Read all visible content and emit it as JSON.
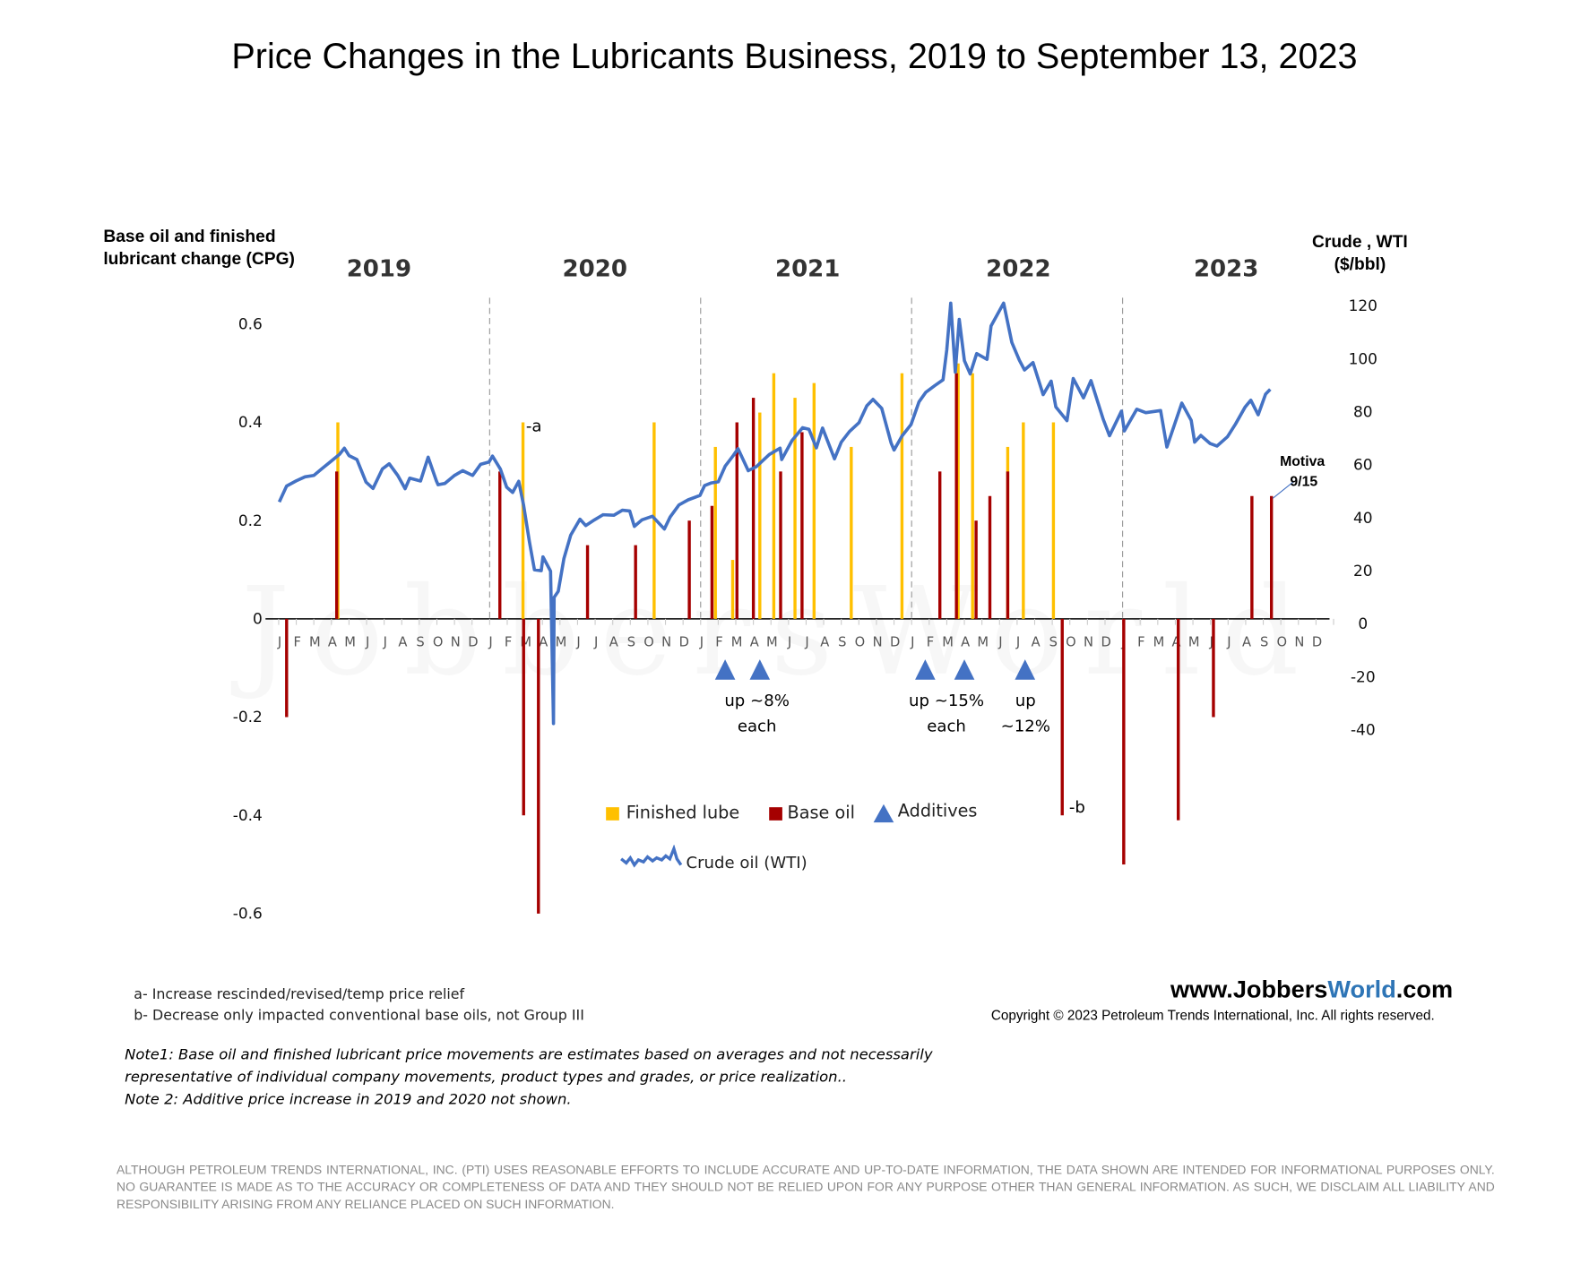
{
  "chart_data": {
    "type": "bar+line",
    "title": "Price Changes in the Lubricants Business, 2019 to September 13, 2023",
    "ylabel_left": [
      "Base oil and finished",
      "lubricant change (CPG)"
    ],
    "ylabel_right": [
      "Crude , WTI",
      "($/bbl)"
    ],
    "ylim_left": [
      -0.6,
      0.6
    ],
    "ylim_right": [
      -40,
      120
    ],
    "yticks_left": [
      "0.6",
      "0.4",
      "0.2",
      "0",
      "-0.2",
      "-0.4",
      "-0.6"
    ],
    "yticks_right": [
      "120",
      "100",
      "80",
      "60",
      "40",
      "20",
      "0",
      "-20",
      "-40"
    ],
    "xlim": [
      "2019-01-01",
      "2024-01-01"
    ],
    "years": [
      "2019",
      "2020",
      "2021",
      "2022",
      "2023"
    ],
    "months": [
      "J",
      "F",
      "M",
      "A",
      "M",
      "J",
      "J",
      "A",
      "S",
      "O",
      "N",
      "D"
    ],
    "grid": false,
    "legend_placement": "bottom-center",
    "colors": {
      "finished_lube": "#FFC000",
      "base_oil": "#A50000",
      "additives": "#4472C4",
      "crude": "#4472C4"
    },
    "series": [
      {
        "name": "Finished lube",
        "type": "bar",
        "axis": "left",
        "points": [
          [
            "2019-04-12",
            0.4
          ],
          [
            "2020-02-27",
            0.4
          ],
          [
            "2020-10-12",
            0.4
          ],
          [
            "2021-01-27",
            0.35
          ],
          [
            "2021-02-24",
            0.12
          ],
          [
            "2021-04-12",
            0.42
          ],
          [
            "2021-05-06",
            0.5
          ],
          [
            "2021-06-12",
            0.45
          ],
          [
            "2021-07-15",
            0.48
          ],
          [
            "2021-09-18",
            0.35
          ],
          [
            "2021-12-15",
            0.5
          ],
          [
            "2022-03-21",
            0.52
          ],
          [
            "2022-04-15",
            0.5
          ],
          [
            "2022-06-15",
            0.35
          ],
          [
            "2022-07-12",
            0.4
          ],
          [
            "2022-09-03",
            0.4
          ]
        ]
      },
      {
        "name": "Base oil",
        "type": "bar",
        "axis": "left",
        "points": [
          [
            "2019-01-15",
            -0.2
          ],
          [
            "2019-04-10",
            0.3
          ],
          [
            "2020-01-19",
            0.3
          ],
          [
            "2020-02-28",
            -0.4
          ],
          [
            "2020-03-25",
            -0.6
          ],
          [
            "2020-06-18",
            0.15
          ],
          [
            "2020-09-10",
            0.15
          ],
          [
            "2020-12-12",
            0.2
          ],
          [
            "2021-01-21",
            0.23
          ],
          [
            "2021-03-03",
            0.4
          ],
          [
            "2021-04-01",
            0.45
          ],
          [
            "2021-05-18",
            0.3
          ],
          [
            "2021-06-24",
            0.38
          ],
          [
            "2022-02-18",
            0.3
          ],
          [
            "2022-03-18",
            0.5
          ],
          [
            "2022-04-21",
            0.2
          ],
          [
            "2022-05-15",
            0.25
          ],
          [
            "2022-06-15",
            0.3
          ],
          [
            "2022-09-18",
            -0.4
          ],
          [
            "2023-01-03",
            -0.5
          ],
          [
            "2023-04-06",
            -0.41
          ],
          [
            "2023-06-06",
            -0.2
          ],
          [
            "2023-08-12",
            0.25
          ],
          [
            "2023-09-15",
            0.25
          ]
        ]
      },
      {
        "name": "Additives",
        "type": "marker",
        "points": [
          "2021-02-12",
          "2021-04-12",
          "2022-01-25",
          "2022-04-01",
          "2022-07-15"
        ]
      },
      {
        "name": "Crude oil (WTI)",
        "type": "line",
        "axis": "right",
        "points": [
          [
            "2019-01-02",
            46
          ],
          [
            "2019-01-15",
            52
          ],
          [
            "2019-02-01",
            54
          ],
          [
            "2019-02-15",
            55.5
          ],
          [
            "2019-03-01",
            56
          ],
          [
            "2019-03-15",
            58.5
          ],
          [
            "2019-04-01",
            61.5
          ],
          [
            "2019-04-15",
            64
          ],
          [
            "2019-04-23",
            66.3
          ],
          [
            "2019-05-01",
            63.5
          ],
          [
            "2019-05-15",
            62
          ],
          [
            "2019-05-31",
            53.5
          ],
          [
            "2019-06-12",
            51.1
          ],
          [
            "2019-06-28",
            58.5
          ],
          [
            "2019-07-10",
            60.4
          ],
          [
            "2019-07-25",
            56
          ],
          [
            "2019-08-07",
            51
          ],
          [
            "2019-08-15",
            55
          ],
          [
            "2019-09-03",
            53.9
          ],
          [
            "2019-09-16",
            62.9
          ],
          [
            "2019-09-30",
            54
          ],
          [
            "2019-10-03",
            52.5
          ],
          [
            "2019-10-15",
            53
          ],
          [
            "2019-11-01",
            56
          ],
          [
            "2019-11-15",
            57.8
          ],
          [
            "2019-12-02",
            56
          ],
          [
            "2019-12-16",
            60.2
          ],
          [
            "2019-12-31",
            61.1
          ],
          [
            "2020-01-06",
            63.3
          ],
          [
            "2020-01-20",
            58.4
          ],
          [
            "2020-01-31",
            51.6
          ],
          [
            "2020-02-10",
            49.6
          ],
          [
            "2020-02-20",
            53.8
          ],
          [
            "2020-02-28",
            44.8
          ],
          [
            "2020-03-09",
            31.1
          ],
          [
            "2020-03-18",
            20.4
          ],
          [
            "2020-03-30",
            20.1
          ],
          [
            "2020-04-02",
            25.3
          ],
          [
            "2020-04-15",
            19.9
          ],
          [
            "2020-04-20",
            -37.6
          ],
          [
            "2020-04-21",
            10
          ],
          [
            "2020-04-28",
            12.3
          ],
          [
            "2020-05-08",
            24.7
          ],
          [
            "2020-05-20",
            33.5
          ],
          [
            "2020-06-05",
            39.5
          ],
          [
            "2020-06-15",
            37.1
          ],
          [
            "2020-06-30",
            39.3
          ],
          [
            "2020-07-15",
            41.2
          ],
          [
            "2020-08-03",
            41
          ],
          [
            "2020-08-18",
            42.9
          ],
          [
            "2020-08-31",
            42.6
          ],
          [
            "2020-09-08",
            36.8
          ],
          [
            "2020-09-21",
            39.3
          ],
          [
            "2020-10-09",
            40.6
          ],
          [
            "2020-10-30",
            35.8
          ],
          [
            "2020-11-09",
            40.3
          ],
          [
            "2020-11-24",
            44.9
          ],
          [
            "2020-12-10",
            46.8
          ],
          [
            "2020-12-31",
            48.5
          ],
          [
            "2021-01-08",
            52.2
          ],
          [
            "2021-01-20",
            53.2
          ],
          [
            "2021-02-01",
            53.6
          ],
          [
            "2021-02-12",
            59.5
          ],
          [
            "2021-02-25",
            63.5
          ],
          [
            "2021-03-05",
            66.1
          ],
          [
            "2021-03-23",
            57.8
          ],
          [
            "2021-04-06",
            59.3
          ],
          [
            "2021-04-28",
            63.9
          ],
          [
            "2021-05-17",
            66.3
          ],
          [
            "2021-05-20",
            62
          ],
          [
            "2021-06-07",
            69.2
          ],
          [
            "2021-06-25",
            74
          ],
          [
            "2021-07-06",
            73.4
          ],
          [
            "2021-07-19",
            66.4
          ],
          [
            "2021-07-30",
            73.9
          ],
          [
            "2021-08-20",
            62.3
          ],
          [
            "2021-09-01",
            68.6
          ],
          [
            "2021-09-15",
            72.6
          ],
          [
            "2021-10-01",
            75.9
          ],
          [
            "2021-10-15",
            82.3
          ],
          [
            "2021-10-26",
            84.7
          ],
          [
            "2021-11-10",
            81.3
          ],
          [
            "2021-11-26",
            68.2
          ],
          [
            "2021-12-01",
            65.6
          ],
          [
            "2021-12-15",
            70.9
          ],
          [
            "2021-12-31",
            75.2
          ],
          [
            "2022-01-14",
            83.8
          ],
          [
            "2022-01-26",
            87.4
          ],
          [
            "2022-02-10",
            89.9
          ],
          [
            "2022-02-23",
            92.1
          ],
          [
            "2022-03-01",
            103.4
          ],
          [
            "2022-03-08",
            123.7
          ],
          [
            "2022-03-16",
            95
          ],
          [
            "2022-03-23",
            114.9
          ],
          [
            "2022-04-01",
            99.3
          ],
          [
            "2022-04-11",
            94.3
          ],
          [
            "2022-04-22",
            102
          ],
          [
            "2022-05-10",
            99.8
          ],
          [
            "2022-05-17",
            112.4
          ],
          [
            "2022-06-08",
            122.1
          ],
          [
            "2022-06-22",
            106.2
          ],
          [
            "2022-07-05",
            99.5
          ],
          [
            "2022-07-14",
            95.8
          ],
          [
            "2022-07-29",
            98.6
          ],
          [
            "2022-08-16",
            86.5
          ],
          [
            "2022-08-30",
            91.6
          ],
          [
            "2022-09-07",
            81.9
          ],
          [
            "2022-09-26",
            76.7
          ],
          [
            "2022-10-07",
            92.6
          ],
          [
            "2022-10-25",
            85.3
          ],
          [
            "2022-11-07",
            91.8
          ],
          [
            "2022-11-28",
            77.2
          ],
          [
            "2022-12-09",
            71
          ],
          [
            "2022-12-30",
            80.3
          ],
          [
            "2023-01-04",
            72.8
          ],
          [
            "2023-01-26",
            81
          ],
          [
            "2023-02-10",
            79.7
          ],
          [
            "2023-03-06",
            80.5
          ],
          [
            "2023-03-17",
            66.7
          ],
          [
            "2023-04-12",
            83.3
          ],
          [
            "2023-04-28",
            76.8
          ],
          [
            "2023-05-04",
            68.6
          ],
          [
            "2023-05-15",
            71.1
          ],
          [
            "2023-05-31",
            68.1
          ],
          [
            "2023-06-12",
            67.1
          ],
          [
            "2023-06-30",
            70.6
          ],
          [
            "2023-07-14",
            75.4
          ],
          [
            "2023-07-31",
            81.8
          ],
          [
            "2023-08-10",
            84.4
          ],
          [
            "2023-08-23",
            78.9
          ],
          [
            "2023-09-05",
            86.7
          ],
          [
            "2023-09-13",
            88.5
          ]
        ]
      }
    ],
    "annotations": {
      "a": "-a",
      "b": "-b",
      "motiva": "Motiva",
      "motiva_date": "9/15",
      "additive_1_line1": "up ~8%",
      "additive_1_line2": "each",
      "additive_2_line1": "up ~15%",
      "additive_2_line2": "each",
      "additive_3_line1": "up",
      "additive_3_line2": "~12%"
    },
    "legend": {
      "finished_lube": "Finished lube",
      "base_oil": "Base oil",
      "additives": "Additives",
      "crude": "Crude oil (WTI)"
    }
  },
  "watermark": "JobbersWorld",
  "footnotes": {
    "a": "a- Increase rescinded/revised/temp price relief",
    "b": "b- Decrease only impacted conventional base oils,  not Group III"
  },
  "notes": {
    "note1_line1": "Note1: Base oil and finished lubricant price movements are estimates based on averages and not necessarily",
    "note1_line2": "representative of individual company movements, product types and grades,  or price realization..",
    "note2": "Note 2: Additive price increase in 2019 and 2020 not shown."
  },
  "branding": {
    "site_prefix": "www.Jobbers",
    "site_highlight": "World",
    "site_suffix": ".com",
    "copyright": "Copyright © 2023 Petroleum Trends International, Inc. All rights reserved."
  },
  "disclaimer": "ALTHOUGH PETROLEUM TRENDS INTERNATIONAL, INC. (PTI) USES REASONABLE EFFORTS TO INCLUDE ACCURATE AND UP-TO-DATE INFORMATION, THE DATA SHOWN ARE INTENDED FOR INFORMATIONAL PURPOSES ONLY. NO GUARANTEE IS MADE AS TO THE ACCURACY OR COMPLETENESS OF DATA AND THEY SHOULD NOT BE RELIED UPON FOR ANY PURPOSE OTHER THAN GENERAL INFORMATION. AS SUCH, WE DISCLAIM ALL LIABILITY AND RESPONSIBILITY ARISING FROM ANY RELIANCE PLACED ON SUCH INFORMATION."
}
